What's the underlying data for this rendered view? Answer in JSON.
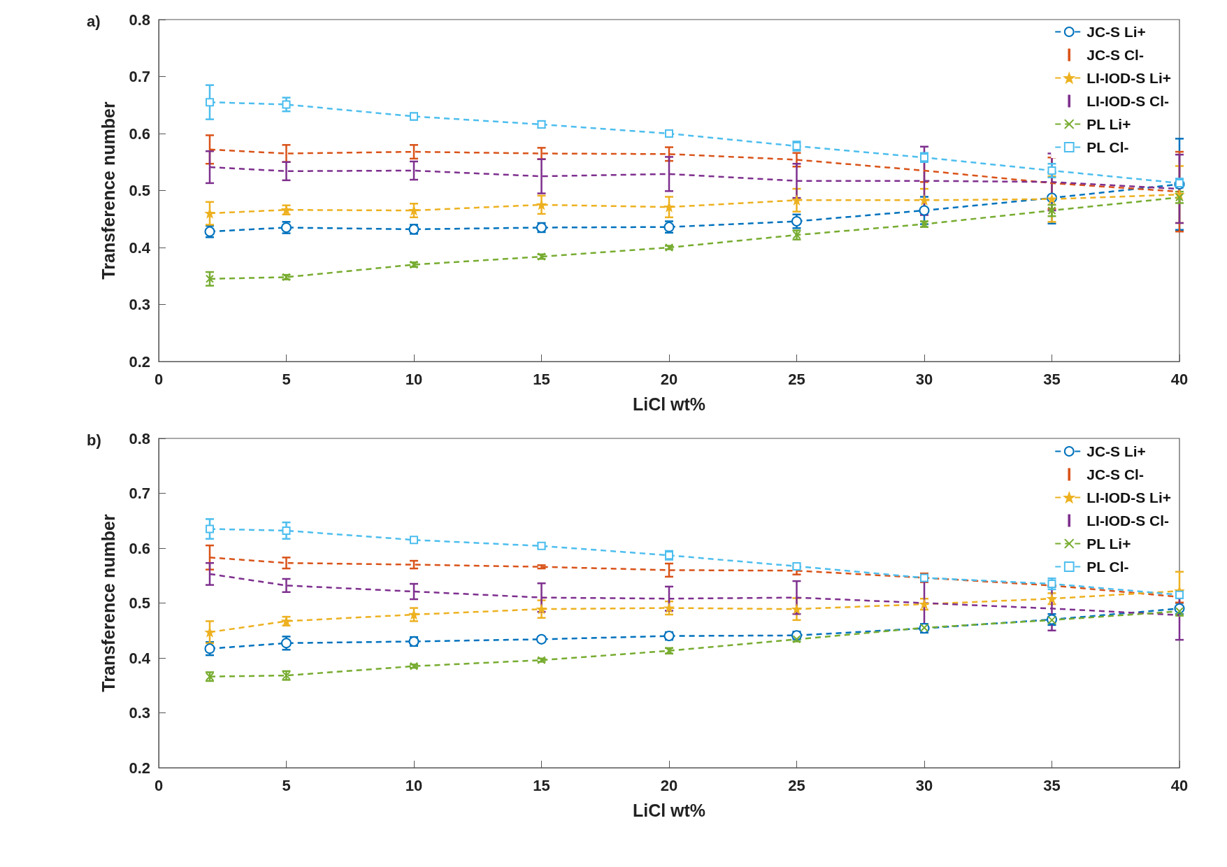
{
  "chart_data": [
    {
      "type": "line",
      "annotations": [
        "a)"
      ],
      "xlabel": "LiCl wt%",
      "ylabel": "Transference number",
      "x": [
        2,
        5,
        10,
        15,
        20,
        25,
        30,
        35,
        40
      ],
      "xlim": [
        0,
        40
      ],
      "xticks": [
        0,
        5,
        10,
        15,
        20,
        25,
        30,
        35,
        40
      ],
      "ylim": [
        0.2,
        0.8
      ],
      "yticks": [
        0.2,
        0.3,
        0.4,
        0.5,
        0.6,
        0.7,
        0.8
      ],
      "grid": false,
      "legend": "top right",
      "line_style": "dashed",
      "series": [
        {
          "name": "JC-S Li+",
          "color": "#0072bd",
          "marker": "circle",
          "values": [
            0.428,
            0.435,
            0.432,
            0.435,
            0.436,
            0.446,
            0.465,
            0.487,
            0.511
          ],
          "errors": [
            0.01,
            0.01,
            0.008,
            0.008,
            0.01,
            0.012,
            0.024,
            0.045,
            0.08
          ]
        },
        {
          "name": "JC-S Cl-",
          "color": "#d95319",
          "marker": "none",
          "values": [
            0.572,
            0.565,
            0.568,
            0.565,
            0.564,
            0.554,
            0.535,
            0.513,
            0.498
          ],
          "errors": [
            0.025,
            0.015,
            0.012,
            0.01,
            0.012,
            0.012,
            0.02,
            0.045,
            0.07
          ]
        },
        {
          "name": "LI-IOD-S Li+",
          "color": "#edb120",
          "marker": "star",
          "values": [
            0.46,
            0.466,
            0.465,
            0.475,
            0.471,
            0.483,
            0.483,
            0.485,
            0.493
          ],
          "errors": [
            0.02,
            0.008,
            0.012,
            0.016,
            0.018,
            0.02,
            0.02,
            0.04,
            0.05
          ]
        },
        {
          "name": "LI-IOD-S Cl-",
          "color": "#7e2f8e",
          "marker": "none",
          "values": [
            0.541,
            0.534,
            0.535,
            0.525,
            0.529,
            0.517,
            0.517,
            0.515,
            0.503
          ],
          "errors": [
            0.028,
            0.016,
            0.016,
            0.03,
            0.03,
            0.03,
            0.06,
            0.05,
            0.06
          ]
        },
        {
          "name": "PL Li+",
          "color": "#77ac30",
          "marker": "cross",
          "values": [
            0.345,
            0.348,
            0.37,
            0.384,
            0.4,
            0.422,
            0.441,
            0.465,
            0.488
          ],
          "errors": [
            0.012,
            0.004,
            0.004,
            0.004,
            0.003,
            0.008,
            0.005,
            0.01,
            0.01
          ]
        },
        {
          "name": "PL Cl-",
          "color": "#4dbeee",
          "marker": "square",
          "values": [
            0.655,
            0.651,
            0.63,
            0.616,
            0.6,
            0.578,
            0.558,
            0.535,
            0.513
          ],
          "errors": [
            0.03,
            0.012,
            0.006,
            0.006,
            0.004,
            0.008,
            0.008,
            0.012,
            0.008
          ]
        }
      ]
    },
    {
      "type": "line",
      "annotations": [
        "b)"
      ],
      "xlabel": "LiCl wt%",
      "ylabel": "Transference number",
      "x": [
        2,
        5,
        10,
        15,
        20,
        25,
        30,
        35,
        40
      ],
      "xlim": [
        0,
        40
      ],
      "xticks": [
        0,
        5,
        10,
        15,
        20,
        25,
        30,
        35,
        40
      ],
      "ylim": [
        0.2,
        0.8
      ],
      "yticks": [
        0.2,
        0.3,
        0.4,
        0.5,
        0.6,
        0.7,
        0.8
      ],
      "grid": false,
      "legend": "top right",
      "line_style": "dashed",
      "series": [
        {
          "name": "JC-S Li+",
          "color": "#0072bd",
          "marker": "circle",
          "values": [
            0.417,
            0.427,
            0.43,
            0.434,
            0.44,
            0.441,
            0.454,
            0.47,
            0.49
          ],
          "errors": [
            0.012,
            0.012,
            0.008,
            0.004,
            0.007,
            0.007,
            0.008,
            0.01,
            0.01
          ]
        },
        {
          "name": "JC-S Cl-",
          "color": "#d95319",
          "marker": "none",
          "values": [
            0.583,
            0.573,
            0.57,
            0.566,
            0.56,
            0.559,
            0.546,
            0.532,
            0.511
          ],
          "errors": [
            0.022,
            0.01,
            0.007,
            0.003,
            0.012,
            0.007,
            0.008,
            null,
            0.01
          ]
        },
        {
          "name": "LI-IOD-S Li+",
          "color": "#edb120",
          "marker": "star",
          "values": [
            0.447,
            0.467,
            0.479,
            0.489,
            0.491,
            0.489,
            0.498,
            0.508,
            0.522
          ],
          "errors": [
            0.02,
            0.008,
            0.012,
            0.016,
            0.012,
            0.02,
            0.01,
            0.01,
            0.035
          ]
        },
        {
          "name": "LI-IOD-S Cl-",
          "color": "#7e2f8e",
          "marker": "none",
          "values": [
            0.553,
            0.532,
            0.521,
            0.51,
            0.508,
            0.51,
            0.5,
            0.49,
            0.478
          ],
          "errors": [
            0.02,
            0.012,
            0.014,
            0.026,
            0.022,
            0.03,
            0.04,
            0.04,
            0.045
          ]
        },
        {
          "name": "PL Li+",
          "color": "#77ac30",
          "marker": "cross",
          "values": [
            0.366,
            0.368,
            0.385,
            0.396,
            0.413,
            0.434,
            0.455,
            0.469,
            0.485
          ],
          "errors": [
            0.008,
            0.008,
            0.003,
            0.003,
            0.005,
            0.004,
            0.004,
            0.006,
            0.008
          ]
        },
        {
          "name": "PL Cl-",
          "color": "#4dbeee",
          "marker": "square",
          "values": [
            0.635,
            0.632,
            0.615,
            0.604,
            0.587,
            0.567,
            0.546,
            0.535,
            0.515
          ],
          "errors": [
            0.018,
            0.015,
            0.004,
            0.005,
            0.008,
            0.004,
            0.005,
            0.01,
            0.006
          ]
        }
      ]
    }
  ]
}
